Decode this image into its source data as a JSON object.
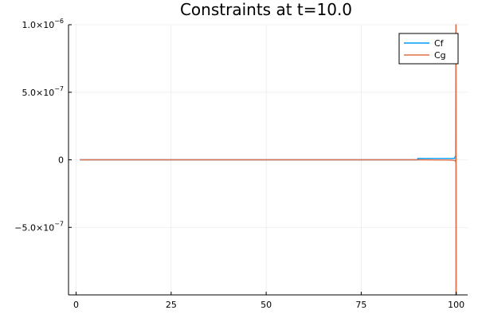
{
  "chart_data": {
    "type": "line",
    "title": "Constraints at t=10.0",
    "xlabel": "",
    "ylabel": "",
    "xlim": [
      -2,
      103
    ],
    "ylim": [
      -1e-06,
      1e-06
    ],
    "x_ticks": [
      {
        "value": 0,
        "label": "0"
      },
      {
        "value": 25,
        "label": "25"
      },
      {
        "value": 50,
        "label": "50"
      },
      {
        "value": 75,
        "label": "75"
      },
      {
        "value": 100,
        "label": "100"
      }
    ],
    "y_ticks": [
      {
        "value": 1e-06,
        "label": "1.0×10",
        "exp": "−6"
      },
      {
        "value": 5e-07,
        "label": "5.0×10",
        "exp": "−7"
      },
      {
        "value": 0,
        "label": "0",
        "exp": ""
      },
      {
        "value": -5e-07,
        "label": "−5.0×10",
        "exp": "−7"
      }
    ],
    "grid": true,
    "legend_position": "top-right",
    "series": [
      {
        "name": "Cf",
        "color": "#009af9",
        "x": [
          1,
          50,
          89.5,
          89.8,
          89.9,
          90.0,
          90.2,
          95,
          98,
          99,
          99.5,
          99.7,
          99.8,
          99.9,
          100.0
        ],
        "y": [
          0,
          0,
          0,
          0,
          1e-08,
          0,
          1e-08,
          1e-08,
          1e-08,
          1e-08,
          1e-08,
          2e-08,
          3e-08,
          3e-08,
          0
        ]
      },
      {
        "name": "Cg",
        "color": "#e26f46",
        "x": [
          1,
          50,
          90,
          95,
          98,
          99,
          99.5,
          99.7,
          99.8,
          99.85,
          99.9,
          99.92,
          99.95,
          100.0
        ],
        "y": [
          0,
          0,
          0,
          -1e-09,
          -2e-09,
          -3e-09,
          -5e-09,
          -8e-09,
          -1.2e-08,
          -1.6e-08,
          1e-06,
          -1e-06,
          1e-06,
          -1e-06
        ]
      }
    ]
  }
}
